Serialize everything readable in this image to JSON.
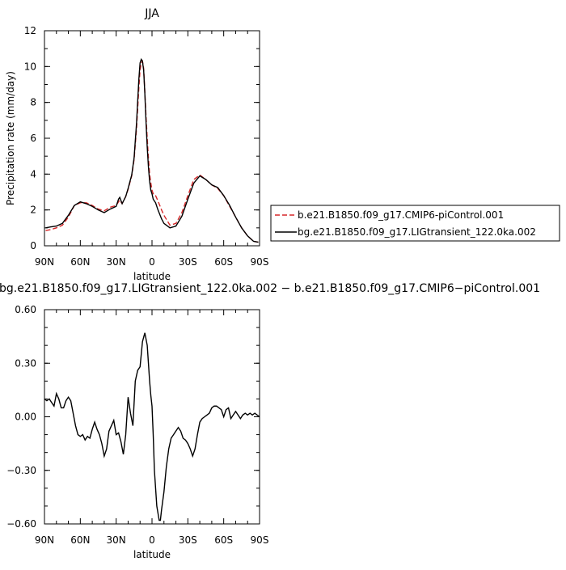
{
  "chart_data": [
    {
      "type": "line",
      "title": "JJA",
      "xlabel": "latitude",
      "ylabel": "Precipitation rate (mm/day)",
      "xlim": [
        90,
        -90
      ],
      "ylim": [
        0,
        12
      ],
      "x_ticks": [
        90,
        60,
        30,
        0,
        -30,
        -60,
        -90
      ],
      "x_tick_labels": [
        "90N",
        "60N",
        "30N",
        "0",
        "30S",
        "60S",
        "90S"
      ],
      "y_ticks": [
        0,
        2,
        4,
        6,
        8,
        10,
        12
      ],
      "y_tick_labels": [
        "0",
        "2",
        "4",
        "6",
        "8",
        "10",
        "12"
      ],
      "legend_position": "right",
      "series": [
        {
          "name": "b.e21.B1850.f09_g17.CMIP6-piControl.001",
          "color": "#d62728",
          "dash": "dashed",
          "x": [
            89,
            85,
            80,
            75,
            70,
            65,
            60,
            55,
            50,
            45,
            40,
            35,
            30,
            27,
            25,
            22,
            20,
            17,
            15,
            13,
            11,
            10,
            9,
            8,
            7,
            6,
            5,
            4,
            3,
            2,
            1,
            0,
            -1,
            -2,
            -3,
            -5,
            -8,
            -10,
            -15,
            -20,
            -25,
            -30,
            -35,
            -40,
            -45,
            -50,
            -55,
            -60,
            -65,
            -70,
            -75,
            -80,
            -85,
            -89
          ],
          "y": [
            0.85,
            0.9,
            1.0,
            1.15,
            1.6,
            2.25,
            2.4,
            2.4,
            2.25,
            2.05,
            1.95,
            2.15,
            2.25,
            2.55,
            2.35,
            2.75,
            3.15,
            3.9,
            4.8,
            6.5,
            8.8,
            9.8,
            10.2,
            10.3,
            9.9,
            8.6,
            7.2,
            6.0,
            4.9,
            4.0,
            3.5,
            3.1,
            2.9,
            2.9,
            2.8,
            2.5,
            2.0,
            1.7,
            1.15,
            1.25,
            1.85,
            2.8,
            3.7,
            3.95,
            3.7,
            3.4,
            3.2,
            2.8,
            2.2,
            1.6,
            1.0,
            0.55,
            0.25,
            0.2
          ]
        },
        {
          "name": "bg.e21.B1850.f09_g17.LIGtransient_122.0ka.002",
          "color": "#000000",
          "dash": "solid",
          "x": [
            89,
            85,
            80,
            75,
            70,
            65,
            60,
            55,
            50,
            45,
            40,
            35,
            30,
            28,
            27,
            25,
            22,
            20,
            17,
            15,
            13,
            11,
            10,
            9,
            8,
            7,
            6,
            5,
            4,
            3,
            2,
            1,
            0,
            -1,
            -2,
            -3,
            -5,
            -8,
            -10,
            -15,
            -20,
            -25,
            -30,
            -35,
            -40,
            -45,
            -50,
            -55,
            -60,
            -65,
            -70,
            -75,
            -80,
            -85,
            -89
          ],
          "y": [
            1.0,
            1.05,
            1.1,
            1.25,
            1.7,
            2.25,
            2.45,
            2.35,
            2.2,
            2.0,
            1.85,
            2.05,
            2.2,
            2.6,
            2.7,
            2.35,
            2.75,
            3.2,
            3.95,
            4.9,
            6.8,
            9.3,
            10.2,
            10.4,
            10.3,
            9.8,
            8.5,
            6.9,
            5.5,
            4.4,
            3.6,
            3.1,
            2.9,
            2.6,
            2.5,
            2.4,
            2.0,
            1.5,
            1.25,
            1.0,
            1.1,
            1.65,
            2.6,
            3.5,
            3.9,
            3.7,
            3.4,
            3.25,
            2.8,
            2.25,
            1.6,
            1.0,
            0.55,
            0.25,
            0.2
          ]
        }
      ]
    },
    {
      "type": "line",
      "title": "bg.e21.B1850.f09_g17.LIGtransient_122.0ka.002 − b.e21.B1850.f09_g17.CMIP6−piControl.001",
      "xlabel": "latitude",
      "ylabel": "",
      "xlim": [
        90,
        -90
      ],
      "ylim": [
        -0.6,
        0.6
      ],
      "x_ticks": [
        90,
        60,
        30,
        0,
        -30,
        -60,
        -90
      ],
      "x_tick_labels": [
        "90N",
        "60N",
        "30N",
        "0",
        "30S",
        "60S",
        "90S"
      ],
      "y_ticks": [
        0.6,
        0.3,
        0,
        -0.3,
        -0.6
      ],
      "y_tick_labels": [
        "0.60",
        "0.30",
        "0.00",
        "−0.30",
        "−0.60"
      ],
      "series": [
        {
          "color": "#000000",
          "dash": "solid",
          "x": [
            90,
            88,
            86,
            84,
            82,
            80,
            78,
            76,
            74,
            72,
            70,
            68,
            66,
            64,
            62,
            60,
            58,
            56,
            54,
            52,
            50,
            48,
            46,
            44,
            42,
            40,
            38,
            36,
            34,
            32,
            30,
            28,
            26,
            24,
            22,
            20,
            18,
            16,
            14,
            12,
            10,
            8,
            6,
            4,
            2,
            1,
            0,
            -1,
            -2,
            -4,
            -6,
            -7,
            -8,
            -10,
            -12,
            -14,
            -16,
            -18,
            -20,
            -22,
            -24,
            -26,
            -28,
            -30,
            -32,
            -34,
            -36,
            -38,
            -40,
            -42,
            -44,
            -46,
            -48,
            -50,
            -52,
            -54,
            -56,
            -58,
            -60,
            -62,
            -64,
            -66,
            -68,
            -70,
            -72,
            -74,
            -76,
            -78,
            -80,
            -82,
            -84,
            -86,
            -88,
            -90
          ],
          "y": [
            0.1,
            0.09,
            0.1,
            0.08,
            0.06,
            0.13,
            0.1,
            0.05,
            0.05,
            0.09,
            0.11,
            0.09,
            0.02,
            -0.05,
            -0.1,
            -0.11,
            -0.1,
            -0.13,
            -0.11,
            -0.12,
            -0.07,
            -0.03,
            -0.07,
            -0.1,
            -0.15,
            -0.22,
            -0.18,
            -0.08,
            -0.05,
            -0.02,
            -0.1,
            -0.09,
            -0.14,
            -0.21,
            -0.1,
            0.11,
            0.02,
            -0.05,
            0.2,
            0.26,
            0.28,
            0.42,
            0.47,
            0.4,
            0.2,
            0.12,
            0.06,
            -0.1,
            -0.3,
            -0.5,
            -0.58,
            -0.58,
            -0.52,
            -0.42,
            -0.28,
            -0.18,
            -0.12,
            -0.1,
            -0.08,
            -0.06,
            -0.08,
            -0.12,
            -0.13,
            -0.15,
            -0.18,
            -0.22,
            -0.18,
            -0.1,
            -0.03,
            -0.01,
            0.0,
            0.01,
            0.02,
            0.05,
            0.06,
            0.06,
            0.05,
            0.04,
            0.0,
            0.04,
            0.05,
            -0.01,
            0.01,
            0.03,
            0.01,
            -0.01,
            0.01,
            0.02,
            0.01,
            0.02,
            0.01,
            0.02,
            0.01,
            0.0
          ]
        }
      ]
    }
  ]
}
